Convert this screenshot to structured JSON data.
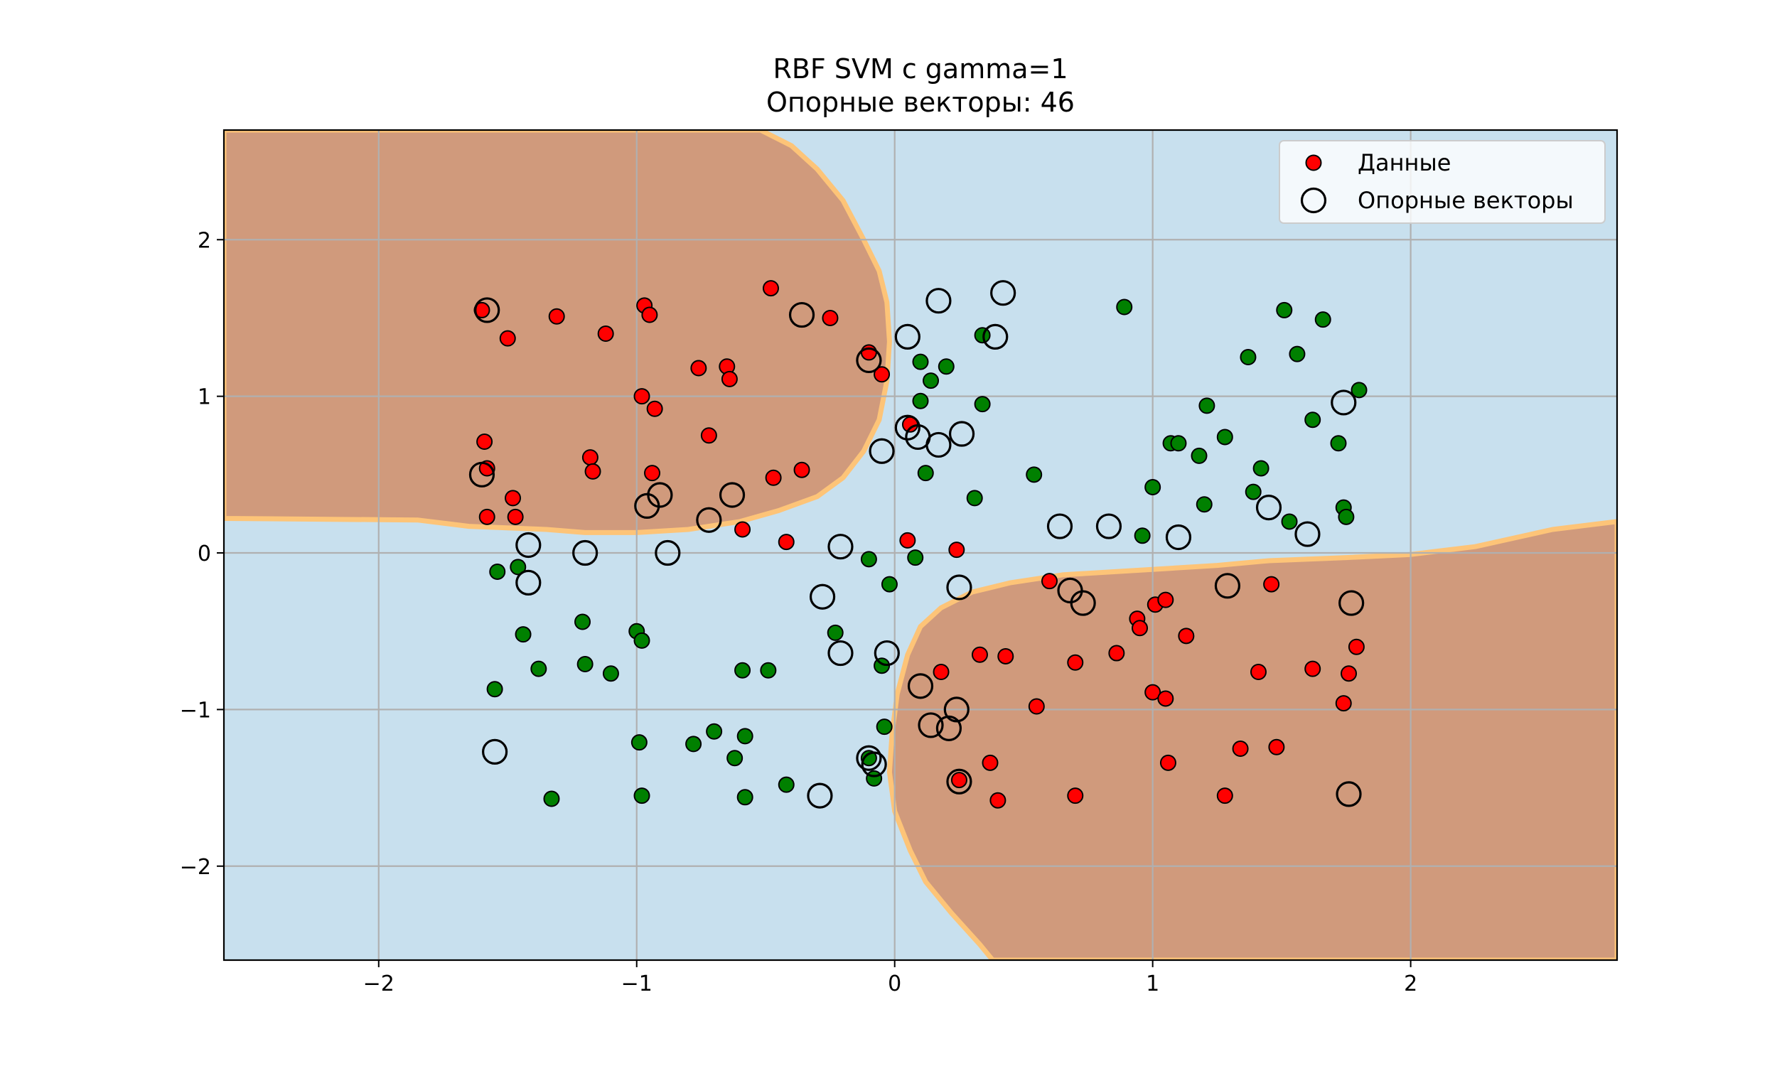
{
  "chart_data": {
    "type": "scatter",
    "title": "RBF SVM с gamma=1",
    "subtitle": "Опорные векторы: 46",
    "xlabel": "",
    "ylabel": "",
    "xlim": [
      -2.6,
      2.8
    ],
    "ylim": [
      -2.6,
      2.7
    ],
    "xticks": [
      -2,
      -1,
      0,
      1,
      2
    ],
    "yticks": [
      -2,
      -1,
      0,
      1,
      2
    ],
    "xtick_labels": [
      "−2",
      "−1",
      "0",
      "1",
      "2"
    ],
    "ytick_labels": [
      "−2",
      "−1",
      "0",
      "1",
      "2"
    ],
    "grid": true,
    "legend_position": "top-right",
    "legend": [
      {
        "label": "Данные",
        "marker": "filled-circle",
        "color": "#ff0000"
      },
      {
        "label": "Опорные векторы",
        "marker": "hollow-circle",
        "color": "#000000"
      }
    ],
    "colors": {
      "class_red": "#ff0000",
      "class_green": "#008000",
      "region_red": "#d09a7c",
      "region_blue": "#c8e0ee",
      "boundary": "#fdc478"
    },
    "decision_regions": [
      {
        "class": "red",
        "polygon": [
          [
            -2.6,
            2.7
          ],
          [
            -0.52,
            2.7
          ],
          [
            -0.4,
            2.6
          ],
          [
            -0.3,
            2.45
          ],
          [
            -0.2,
            2.25
          ],
          [
            -0.12,
            2.0
          ],
          [
            -0.06,
            1.8
          ],
          [
            -0.03,
            1.6
          ],
          [
            -0.02,
            1.35
          ],
          [
            -0.03,
            1.1
          ],
          [
            -0.06,
            0.85
          ],
          [
            -0.12,
            0.65
          ],
          [
            -0.2,
            0.48
          ],
          [
            -0.3,
            0.36
          ],
          [
            -0.45,
            0.27
          ],
          [
            -0.6,
            0.2
          ],
          [
            -0.8,
            0.15
          ],
          [
            -1.0,
            0.13
          ],
          [
            -1.2,
            0.13
          ],
          [
            -1.35,
            0.15
          ],
          [
            -1.65,
            0.17
          ],
          [
            -1.85,
            0.21
          ],
          [
            -2.6,
            0.22
          ]
        ]
      },
      {
        "class": "red",
        "polygon": [
          [
            2.8,
            -2.6
          ],
          [
            0.38,
            -2.6
          ],
          [
            0.33,
            -2.5
          ],
          [
            0.22,
            -2.3
          ],
          [
            0.12,
            -2.1
          ],
          [
            0.06,
            -1.9
          ],
          [
            0.0,
            -1.65
          ],
          [
            -0.02,
            -1.4
          ],
          [
            -0.01,
            -1.15
          ],
          [
            0.01,
            -0.9
          ],
          [
            0.05,
            -0.65
          ],
          [
            0.1,
            -0.47
          ],
          [
            0.18,
            -0.35
          ],
          [
            0.3,
            -0.25
          ],
          [
            0.45,
            -0.19
          ],
          [
            0.65,
            -0.14
          ],
          [
            0.85,
            -0.12
          ],
          [
            1.05,
            -0.1
          ],
          [
            1.25,
            -0.08
          ],
          [
            1.45,
            -0.05
          ],
          [
            1.75,
            -0.03
          ],
          [
            2.0,
            -0.01
          ],
          [
            2.25,
            0.04
          ],
          [
            2.55,
            0.15
          ],
          [
            2.8,
            0.2
          ]
        ]
      }
    ],
    "series": [
      {
        "name": "red",
        "x": [
          -1.6,
          -1.5,
          -1.31,
          -1.12,
          -0.97,
          -0.95,
          -0.48,
          -0.25,
          -1.59,
          -1.58,
          -1.48,
          -1.58,
          -1.47,
          -1.18,
          -1.17,
          -0.98,
          -0.93,
          -0.94,
          -0.76,
          -0.72,
          -0.65,
          -0.64,
          -0.1,
          -0.05,
          -0.59,
          -0.47,
          -0.36,
          -0.42,
          0.05,
          0.24,
          0.06,
          0.6,
          0.94,
          0.95,
          1.01,
          1.05,
          1.13,
          1.46,
          1.79,
          0.18,
          0.33,
          0.43,
          0.7,
          0.86,
          1.62,
          1.76,
          1.74,
          1.0,
          1.05,
          1.41,
          0.55,
          1.34,
          1.48,
          1.06,
          0.37,
          0.25,
          0.7,
          0.4,
          1.28
        ],
        "y": [
          1.55,
          1.37,
          1.51,
          1.4,
          1.58,
          1.52,
          1.69,
          1.5,
          0.71,
          0.54,
          0.35,
          0.23,
          0.23,
          0.61,
          0.52,
          1.0,
          0.92,
          0.51,
          1.18,
          0.75,
          1.19,
          1.11,
          1.28,
          1.14,
          0.15,
          0.48,
          0.53,
          0.07,
          0.08,
          0.02,
          0.82,
          -0.18,
          -0.42,
          -0.48,
          -0.33,
          -0.3,
          -0.53,
          -0.2,
          -0.6,
          -0.76,
          -0.65,
          -0.66,
          -0.7,
          -0.64,
          -0.74,
          -0.77,
          -0.96,
          -0.89,
          -0.93,
          -0.76,
          -0.98,
          -1.25,
          -1.24,
          -1.34,
          -1.34,
          -1.45,
          -1.55,
          -1.58,
          -1.55
        ]
      },
      {
        "name": "green",
        "x": [
          0.89,
          1.51,
          1.66,
          1.37,
          1.56,
          1.8,
          1.62,
          1.21,
          1.72,
          1.07,
          1.1,
          1.28,
          1.18,
          1.42,
          1.39,
          1.2,
          1.53,
          1.74,
          1.75,
          0.34,
          0.1,
          0.14,
          0.2,
          0.1,
          0.34,
          0.12,
          0.31,
          0.54,
          1.0,
          0.96,
          -0.1,
          -0.02,
          0.08,
          -0.23,
          -0.05,
          -1.54,
          -1.46,
          -1.44,
          -1.38,
          -1.21,
          -1.2,
          -1.1,
          -1.0,
          -0.98,
          -1.55,
          -0.59,
          -0.49,
          -0.99,
          -0.98,
          -0.7,
          -0.78,
          -0.62,
          -0.58,
          -0.58,
          -0.42,
          -0.08,
          -0.1,
          -0.04,
          -1.33
        ],
        "y": [
          1.57,
          1.55,
          1.49,
          1.25,
          1.27,
          1.04,
          0.85,
          0.94,
          0.7,
          0.7,
          0.7,
          0.74,
          0.62,
          0.54,
          0.39,
          0.31,
          0.2,
          0.29,
          0.23,
          1.39,
          1.22,
          1.1,
          1.19,
          0.97,
          0.95,
          0.51,
          0.35,
          0.5,
          0.42,
          0.11,
          -0.04,
          -0.2,
          -0.03,
          -0.51,
          -0.72,
          -0.12,
          -0.09,
          -0.52,
          -0.74,
          -0.44,
          -0.71,
          -0.77,
          -0.5,
          -0.56,
          -0.87,
          -0.75,
          -0.75,
          -1.21,
          -1.55,
          -1.14,
          -1.22,
          -1.31,
          -1.17,
          -1.56,
          -1.48,
          -1.44,
          -1.31,
          -1.11,
          -1.57
        ]
      },
      {
        "name": "support_vectors",
        "x": [
          -1.58,
          -0.36,
          0.17,
          0.42,
          0.05,
          0.39,
          -0.1,
          0.05,
          0.09,
          0.17,
          0.26,
          -0.05,
          -1.6,
          -0.96,
          -0.91,
          -0.63,
          -0.72,
          -1.42,
          -1.2,
          -0.88,
          -0.21,
          -1.42,
          -0.28,
          -0.21,
          -0.03,
          0.1,
          0.14,
          0.21,
          0.24,
          -0.1,
          -0.08,
          -0.29,
          0.25,
          -1.55,
          0.25,
          0.64,
          0.83,
          0.68,
          0.73,
          1.1,
          1.29,
          1.45,
          1.6,
          1.77,
          1.74,
          1.76
        ],
        "y": [
          1.55,
          1.52,
          1.61,
          1.66,
          1.38,
          1.38,
          1.23,
          0.8,
          0.74,
          0.69,
          0.76,
          0.65,
          0.5,
          0.3,
          0.37,
          0.37,
          0.21,
          0.05,
          0.0,
          0.0,
          0.04,
          -0.19,
          -0.28,
          -0.64,
          -0.64,
          -0.85,
          -1.1,
          -1.12,
          -1.0,
          -1.31,
          -1.35,
          -1.55,
          -1.46,
          -1.27,
          -0.22,
          0.17,
          0.17,
          -0.24,
          -0.32,
          0.1,
          -0.21,
          0.29,
          0.12,
          -0.32,
          0.96,
          -1.54
        ]
      }
    ]
  }
}
